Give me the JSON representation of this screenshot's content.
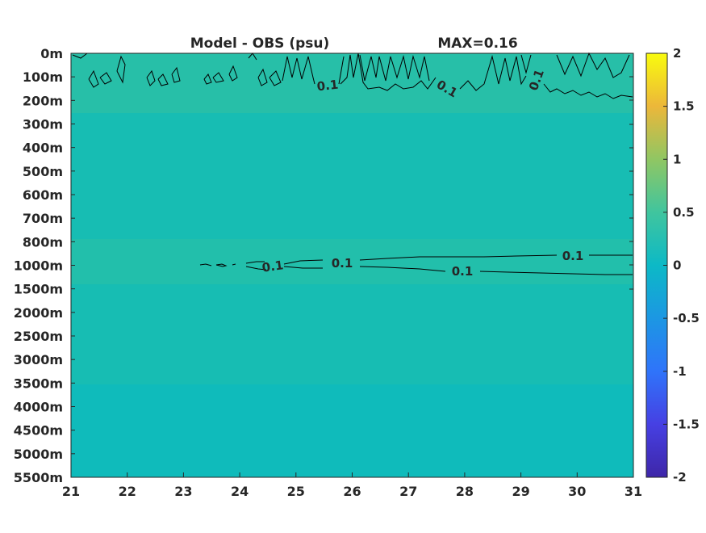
{
  "chart_data": {
    "type": "heatmap",
    "title": "Model - OBS (psu)",
    "title_right": "MAX=0.16",
    "xlabel": "",
    "ylabel": "",
    "x_ticks": [
      "21",
      "22",
      "23",
      "24",
      "25",
      "26",
      "27",
      "28",
      "29",
      "30",
      "31"
    ],
    "xlim": [
      21,
      31
    ],
    "y_ticks": [
      "0m",
      "100m",
      "200m",
      "300m",
      "400m",
      "500m",
      "600m",
      "700m",
      "800m",
      "1000m",
      "1500m",
      "2000m",
      "2500m",
      "3000m",
      "3500m",
      "4000m",
      "4500m",
      "5000m",
      "5500m"
    ],
    "colorbar": {
      "ticks": [
        "2",
        "1.5",
        "1",
        "0.5",
        "0",
        "-0.5",
        "-1",
        "-1.5",
        "-2"
      ],
      "range": [
        -2,
        2
      ],
      "colormap": "parula"
    },
    "bands": [
      {
        "from": "0m",
        "to": "200m",
        "value": 0.1
      },
      {
        "from": "200m",
        "to": "800m",
        "value": 0.04
      },
      {
        "from": "800m",
        "to": "1500m",
        "value": 0.08
      },
      {
        "from": "1500m",
        "to": "3500m",
        "value": 0.04
      },
      {
        "from": "3500m",
        "to": "5500m",
        "value": 0.0
      }
    ],
    "contour_level": 0.1,
    "contour_labels": [
      "0.1",
      "0.1",
      "0.1",
      "0.1",
      "0.1",
      "0.1",
      "0.1"
    ],
    "grid": false,
    "colors": {
      "value_0": "#0fbbbb",
      "value_0.04": "#17bdb3",
      "value_0.1": "#27bfa8",
      "max": "#f9fb0e",
      "min": "#3e26a8"
    }
  }
}
